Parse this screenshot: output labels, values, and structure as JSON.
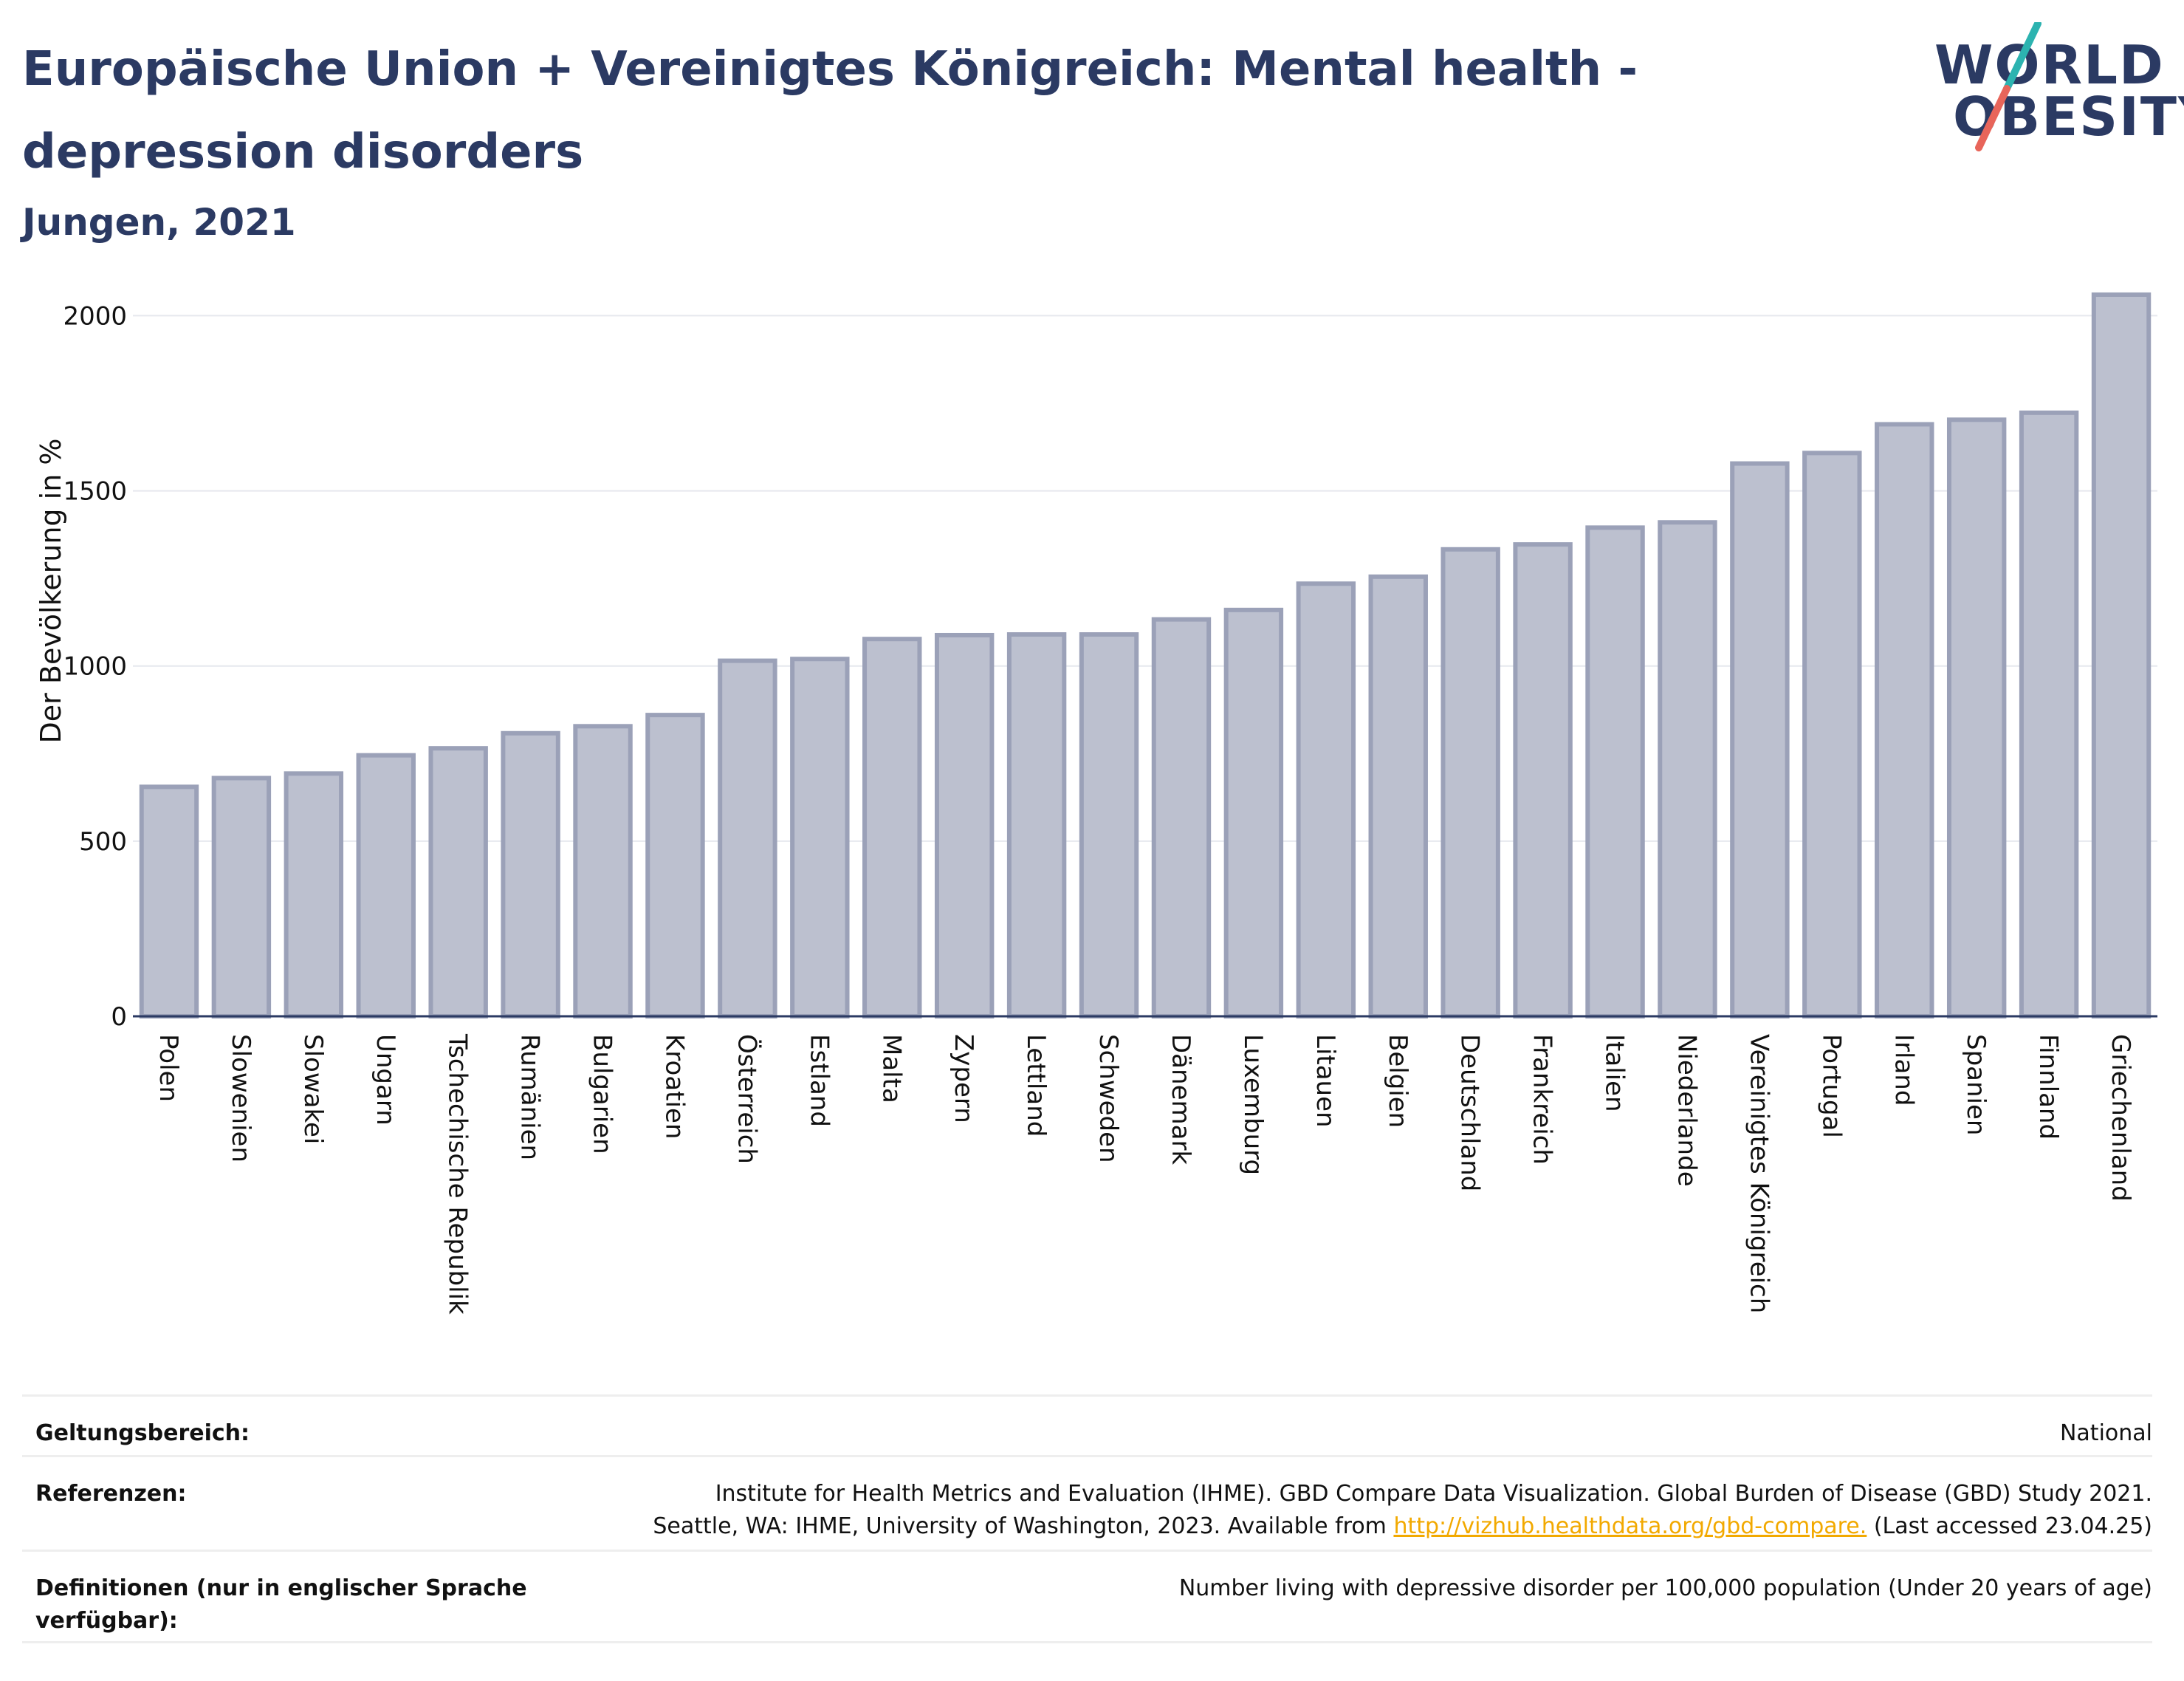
{
  "header": {
    "title": "Europäische Union + Vereinigtes Königreich: Mental health - depression disorders",
    "subtitle": "Jungen, 2021"
  },
  "logo": {
    "line1": "WORLD",
    "line2": "OBESITY",
    "slash_color_top": "#2cb3b0",
    "slash_color_bottom": "#e8655a"
  },
  "chart_data": {
    "type": "bar",
    "ylabel": "Der Bevölkerung in %",
    "xlabel": "",
    "ylim": [
      0,
      2100
    ],
    "yticks": [
      0,
      500,
      1000,
      1500,
      2000
    ],
    "grid": true,
    "bar_color": "#bcc0cf",
    "bar_edge_color": "#9ba1b8",
    "categories": [
      "Polen",
      "Slowenien",
      "Slowakei",
      "Ungarn",
      "Tschechische Republik",
      "Rumänien",
      "Bulgarien",
      "Kroatien",
      "Österreich",
      "Estland",
      "Malta",
      "Zypern",
      "Lettland",
      "Schweden",
      "Dänemark",
      "Luxemburg",
      "Litauen",
      "Belgien",
      "Deutschland",
      "Frankreich",
      "Italien",
      "Niederlande",
      "Vereinigtes Königreich",
      "Portugal",
      "Irland",
      "Spanien",
      "Finnland",
      "Griechenland"
    ],
    "values": [
      655,
      680,
      693,
      745,
      765,
      808,
      828,
      860,
      1015,
      1020,
      1077,
      1088,
      1090,
      1090,
      1133,
      1160,
      1235,
      1255,
      1333,
      1347,
      1395,
      1410,
      1578,
      1608,
      1690,
      1703,
      1723,
      2060
    ]
  },
  "info": {
    "scope_label": "Geltungsbereich:",
    "scope_value": "National",
    "references_label": "Referenzen:",
    "references_line1": "Institute for Health Metrics and Evaluation (IHME). GBD Compare Data Visualization. Global Burden of Disease (GBD) Study 2021.",
    "references_line2_pre": "Seattle, WA: IHME, University of Washington, 2023. Available from ",
    "references_link": "http://vizhub.healthdata.org/gbd-compare.",
    "references_line2_post": " (Last accessed 23.04.25)",
    "definitions_label": "Definitionen (nur in englischer Sprache verfügbar):",
    "definitions_value": "Number living with depressive disorder per 100,000 population (Under 20 years of age)"
  }
}
